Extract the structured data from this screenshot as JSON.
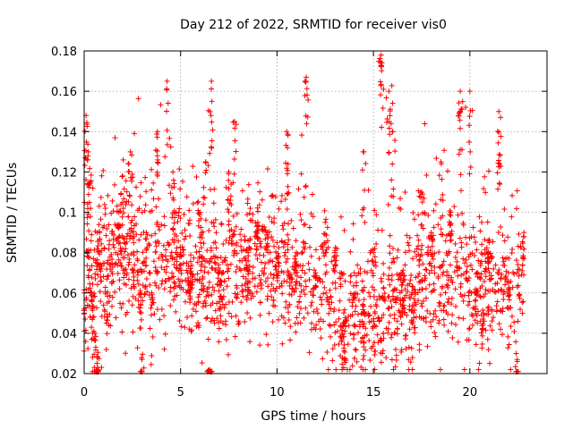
{
  "chart_data": {
    "type": "scatter",
    "title": "Day 212 of 2022, SRMTID for receiver vis0",
    "xlabel": "GPS time / hours",
    "ylabel": "SRMTID / TECUs",
    "xlim": [
      0,
      24
    ],
    "ylim": [
      0.02,
      0.18
    ],
    "xticks": [
      0,
      5,
      10,
      15,
      20
    ],
    "xtick_labels": [
      "0",
      "5",
      "10",
      "15",
      "20"
    ],
    "yticks": [
      0.02,
      0.04,
      0.06,
      0.08,
      0.1,
      0.12,
      0.14,
      0.16,
      0.18
    ],
    "ytick_labels": [
      "0.02",
      "0.04",
      "0.06",
      "0.08",
      "0.1",
      "0.12",
      "0.14",
      "0.16",
      "0.18"
    ],
    "grid": true,
    "marker": "+",
    "color": "#ff0000",
    "series": [
      {
        "name": "SRMTID",
        "description": "Approximately 2000 scattered points from 0 to 22.8 hours, mostly between 0.04 and 0.10 TECU, with spikes up to 0.178 TECU near 15.4 h.",
        "clusters": [
          {
            "x": 0.0,
            "y": 0.06
          },
          {
            "x": 0.1,
            "y": 0.148
          },
          {
            "x": 0.2,
            "y": 0.128
          },
          {
            "x": 0.3,
            "y": 0.115
          },
          {
            "x": 0.4,
            "y": 0.06
          },
          {
            "x": 0.5,
            "y": 0.041
          },
          {
            "x": 0.6,
            "y": 0.033
          },
          {
            "x": 0.7,
            "y": 0.023
          },
          {
            "x": 0.8,
            "y": 0.09
          },
          {
            "x": 1.2,
            "y": 0.055
          },
          {
            "x": 1.8,
            "y": 0.1
          },
          {
            "x": 2.0,
            "y": 0.118
          },
          {
            "x": 2.4,
            "y": 0.13
          },
          {
            "x": 2.9,
            "y": 0.06
          },
          {
            "x": 3.0,
            "y": 0.027
          },
          {
            "x": 3.5,
            "y": 0.06
          },
          {
            "x": 3.8,
            "y": 0.14
          },
          {
            "x": 4.3,
            "y": 0.165
          },
          {
            "x": 4.6,
            "y": 0.12
          },
          {
            "x": 5.0,
            "y": 0.08
          },
          {
            "x": 5.5,
            "y": 0.07
          },
          {
            "x": 6.0,
            "y": 0.1
          },
          {
            "x": 6.3,
            "y": 0.125
          },
          {
            "x": 6.6,
            "y": 0.165
          },
          {
            "x": 6.5,
            "y": 0.022
          },
          {
            "x": 7.0,
            "y": 0.07
          },
          {
            "x": 7.5,
            "y": 0.12
          },
          {
            "x": 7.8,
            "y": 0.145
          },
          {
            "x": 8.5,
            "y": 0.08
          },
          {
            "x": 9.0,
            "y": 0.095
          },
          {
            "x": 9.5,
            "y": 0.09
          },
          {
            "x": 10.0,
            "y": 0.085
          },
          {
            "x": 10.5,
            "y": 0.14
          },
          {
            "x": 11.0,
            "y": 0.08
          },
          {
            "x": 11.5,
            "y": 0.165
          },
          {
            "x": 12.0,
            "y": 0.07
          },
          {
            "x": 12.5,
            "y": 0.095
          },
          {
            "x": 13.0,
            "y": 0.08
          },
          {
            "x": 13.5,
            "y": 0.045
          },
          {
            "x": 14.0,
            "y": 0.07
          },
          {
            "x": 14.5,
            "y": 0.13
          },
          {
            "x": 15.0,
            "y": 0.08
          },
          {
            "x": 15.4,
            "y": 0.178
          },
          {
            "x": 15.8,
            "y": 0.16
          },
          {
            "x": 16.0,
            "y": 0.14
          },
          {
            "x": 16.5,
            "y": 0.07
          },
          {
            "x": 17.0,
            "y": 0.06
          },
          {
            "x": 17.5,
            "y": 0.11
          },
          {
            "x": 18.0,
            "y": 0.09
          },
          {
            "x": 18.5,
            "y": 0.125
          },
          {
            "x": 19.0,
            "y": 0.1
          },
          {
            "x": 19.5,
            "y": 0.16
          },
          {
            "x": 20.0,
            "y": 0.16
          },
          {
            "x": 20.3,
            "y": 0.06
          },
          {
            "x": 20.7,
            "y": 0.05
          },
          {
            "x": 21.0,
            "y": 0.085
          },
          {
            "x": 21.5,
            "y": 0.15
          },
          {
            "x": 22.0,
            "y": 0.07
          },
          {
            "x": 22.4,
            "y": 0.03
          },
          {
            "x": 22.8,
            "y": 0.09
          }
        ]
      }
    ]
  }
}
